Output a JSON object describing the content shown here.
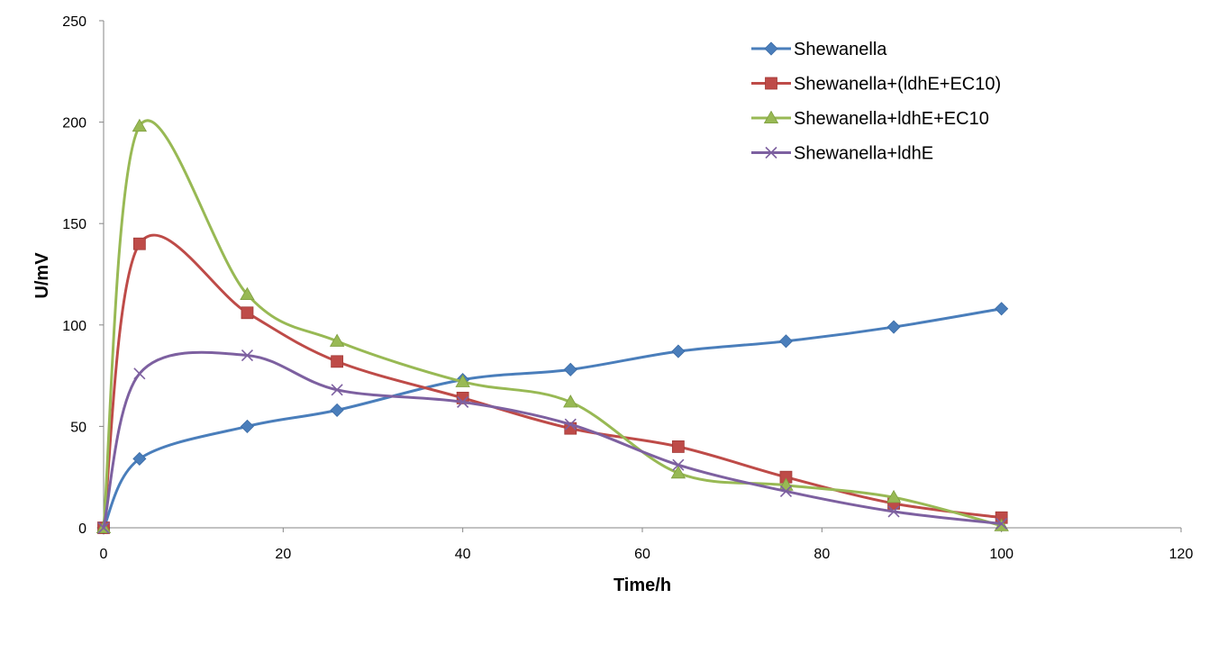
{
  "chart_data": {
    "type": "line",
    "title": "",
    "xlabel": "Time/h",
    "ylabel": "U/mV",
    "xlim": [
      0,
      120
    ],
    "ylim": [
      0,
      250
    ],
    "x_ticks": [
      "0",
      "20",
      "40",
      "60",
      "80",
      "100",
      "120"
    ],
    "y_ticks": [
      "0",
      "50",
      "100",
      "150",
      "200",
      "250"
    ],
    "grid": false,
    "legend_position": "top-right",
    "series": [
      {
        "name": "Shewanella",
        "color": "#4A7EBB",
        "marker": "diamond",
        "x": [
          0,
          4,
          16,
          26,
          40,
          52,
          64,
          76,
          88,
          100
        ],
        "y": [
          0,
          34,
          50,
          58,
          73,
          78,
          87,
          92,
          99,
          108
        ]
      },
      {
        "name": "Shewanella+(ldhE+EC10)",
        "color": "#BE4B48",
        "marker": "square",
        "x": [
          0,
          4,
          16,
          26,
          40,
          52,
          64,
          76,
          88,
          100
        ],
        "y": [
          0,
          140,
          106,
          82,
          64,
          49,
          40,
          25,
          12,
          5
        ]
      },
      {
        "name": "Shewanella+ldhE+EC10",
        "color": "#98B954",
        "marker": "triangle",
        "x": [
          0,
          4,
          16,
          26,
          40,
          52,
          64,
          76,
          88,
          100
        ],
        "y": [
          0,
          198,
          115,
          92,
          72,
          62,
          27,
          21,
          15,
          1
        ]
      },
      {
        "name": "Shewanella+ldhE",
        "color": "#7D60A0",
        "marker": "x",
        "x": [
          0,
          4,
          16,
          26,
          40,
          52,
          64,
          76,
          88,
          100
        ],
        "y": [
          0,
          76,
          85,
          68,
          62,
          51,
          31,
          18,
          8,
          2
        ]
      }
    ]
  }
}
